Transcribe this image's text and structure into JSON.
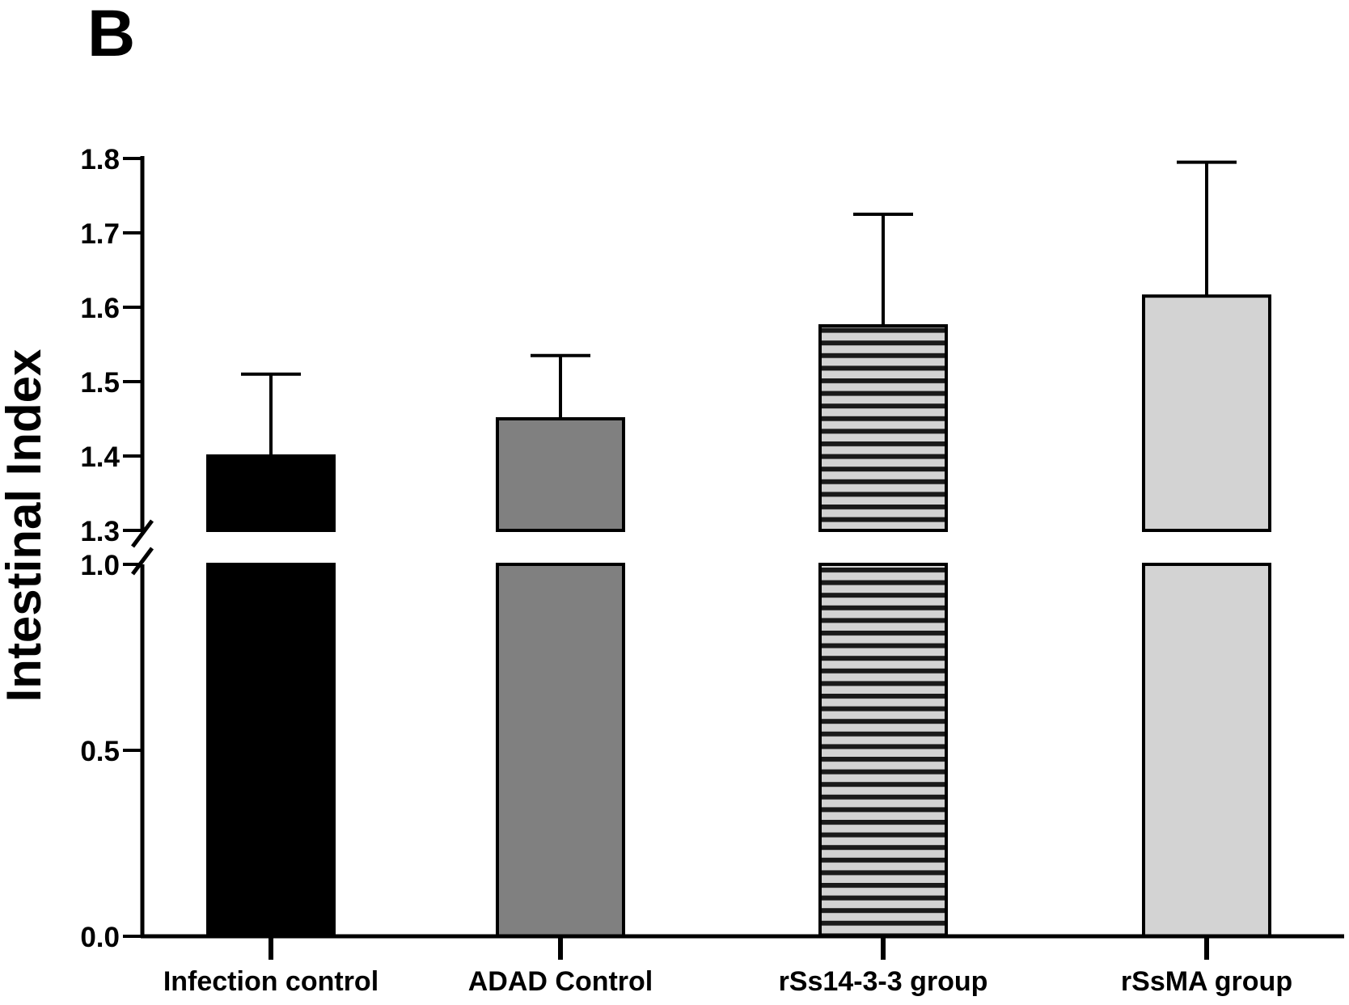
{
  "panel_label": "B",
  "colors": {
    "infection": "#000000",
    "adad": "#808080",
    "stripe_light": "#d3d3d3",
    "stripe_dark": "#1a1a1a",
    "rssma": "#d3d3d3",
    "axis": "#000000"
  },
  "chart_data": {
    "type": "bar",
    "title": "",
    "xlabel": "",
    "ylabel": "Intestinal Index",
    "categories": [
      "Infection control",
      "ADAD Control",
      "rSs14-3-3 group",
      "rSsMA group"
    ],
    "values": [
      1.4,
      1.45,
      1.575,
      1.615
    ],
    "error_upper": [
      0.11,
      0.085,
      0.15,
      0.18
    ],
    "fills": [
      "solid-black",
      "solid-gray",
      "horizontal-stripes",
      "solid-light-gray"
    ],
    "y_axis_broken": true,
    "y_break": [
      1.0,
      1.3
    ],
    "lower_segment": {
      "ylim": [
        0.0,
        1.0
      ],
      "ticks": [
        "0.0",
        "0.5",
        "1.0"
      ],
      "tick_values": [
        0.0,
        0.5,
        1.0
      ]
    },
    "upper_segment": {
      "ylim": [
        1.3,
        1.8
      ],
      "ticks": [
        "1.3",
        "1.4",
        "1.5",
        "1.6",
        "1.7",
        "1.8"
      ],
      "tick_values": [
        1.3,
        1.4,
        1.5,
        1.6,
        1.7,
        1.8
      ]
    },
    "grid": false,
    "legend": "none"
  }
}
